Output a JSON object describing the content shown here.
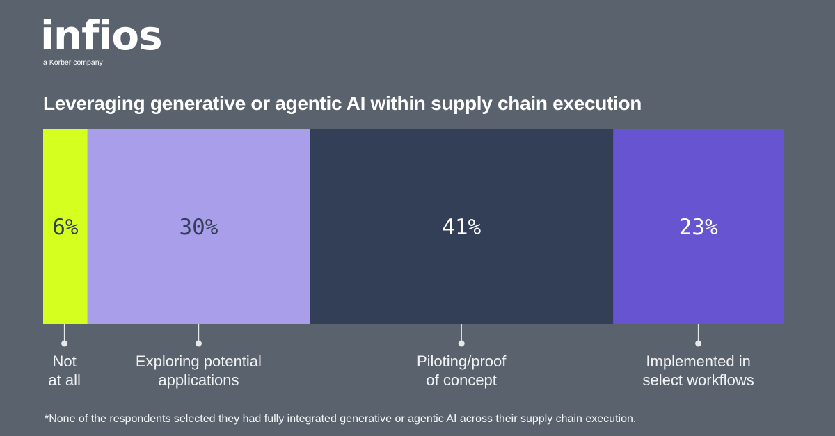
{
  "brand": {
    "logo_text": "infios",
    "tagline": "a Körber company"
  },
  "chart_data": {
    "type": "bar",
    "subtype": "100%-stacked-horizontal",
    "title": "Leveraging generative or agentic AI within supply chain execution",
    "categories": [
      "Not at all",
      "Exploring potential applications",
      "Piloting/proof of concept",
      "Implemented in select workflows"
    ],
    "category_label_lines": [
      [
        "Not",
        "at all"
      ],
      [
        "Exploring potential",
        "applications"
      ],
      [
        "Piloting/proof",
        "of concept"
      ],
      [
        "Implemented in",
        "select workflows"
      ]
    ],
    "values": [
      6,
      30,
      41,
      23
    ],
    "value_labels": [
      "6%",
      "30%",
      "41%",
      "23%"
    ],
    "unit": "%",
    "total": 100,
    "colors": [
      "#d4ff1f",
      "#a89eea",
      "#323f56",
      "#6654d0"
    ],
    "label_colors": [
      "#323f56",
      "#323f56",
      "#ffffff",
      "#ffffff"
    ],
    "xlabel": "",
    "ylabel": "",
    "legend": "none",
    "grid": false,
    "footnote": "*None of the respondents selected they had fully integrated generative or agentic AI across their supply chain execution."
  },
  "theme": {
    "background": "#5a636d",
    "text": "#ffffff",
    "connector": "#e6e8ea"
  }
}
